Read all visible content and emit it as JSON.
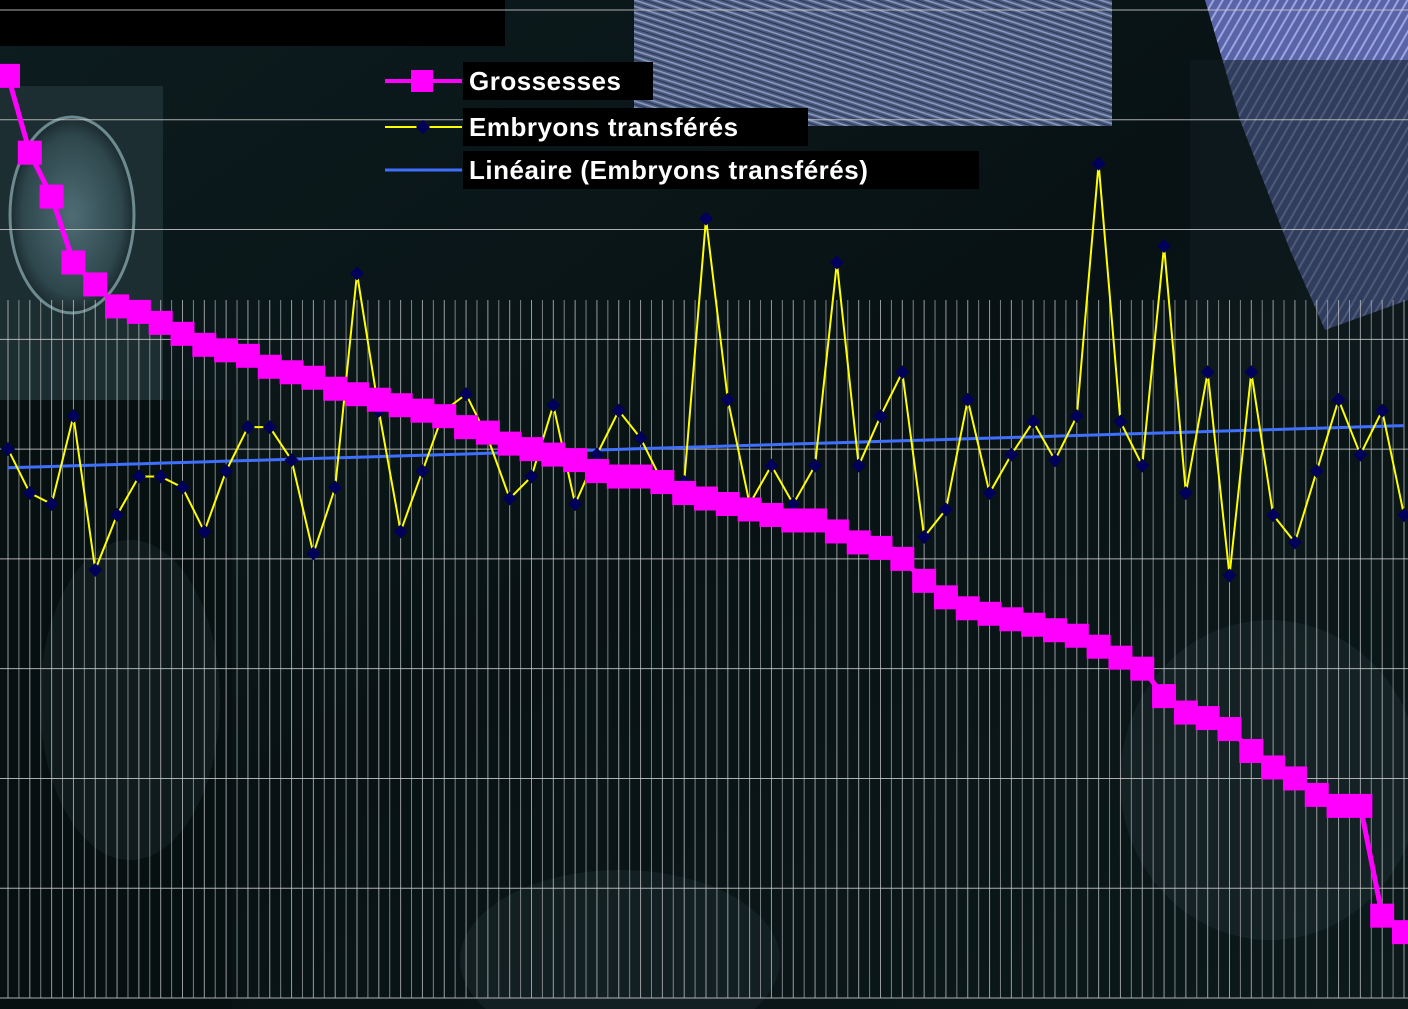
{
  "chart_data": {
    "type": "line",
    "title": "",
    "xlabel": "",
    "ylabel": "",
    "x": [
      1,
      2,
      3,
      4,
      5,
      6,
      7,
      8,
      9,
      10,
      11,
      12,
      13,
      14,
      15,
      16,
      17,
      18,
      19,
      20,
      21,
      22,
      23,
      24,
      25,
      26,
      27,
      28,
      29,
      30,
      31,
      32,
      33,
      34,
      35,
      36,
      37,
      38,
      39,
      40,
      41,
      42,
      43,
      44,
      45,
      46,
      47,
      48,
      49,
      50,
      51,
      52,
      53,
      54,
      55,
      56,
      57,
      58,
      59,
      60,
      61,
      62,
      63,
      64,
      65
    ],
    "ylim": [
      0,
      9
    ],
    "grid": true,
    "legend_position": "top-center",
    "series": [
      {
        "name": "Grossesses",
        "color": "#ff00ff",
        "marker": "square",
        "values": [
          8.4,
          7.7,
          7.3,
          6.7,
          6.5,
          6.3,
          6.25,
          6.15,
          6.05,
          5.95,
          5.9,
          5.85,
          5.75,
          5.7,
          5.65,
          5.55,
          5.5,
          5.45,
          5.4,
          5.35,
          5.3,
          5.2,
          5.15,
          5.05,
          5.0,
          4.95,
          4.9,
          4.8,
          4.75,
          4.75,
          4.7,
          4.6,
          4.55,
          4.5,
          4.45,
          4.4,
          4.35,
          4.35,
          4.25,
          4.15,
          4.1,
          4.0,
          3.8,
          3.65,
          3.55,
          3.5,
          3.45,
          3.4,
          3.35,
          3.3,
          3.2,
          3.1,
          3.0,
          2.75,
          2.6,
          2.55,
          2.45,
          2.25,
          2.1,
          2.0,
          1.85,
          1.75,
          1.75,
          0.75,
          0.6
        ]
      },
      {
        "name": "Embryons transférés",
        "color": "#ffff00",
        "marker": "diamond",
        "values": [
          5.0,
          4.6,
          4.5,
          5.3,
          3.9,
          4.4,
          4.75,
          4.75,
          4.65,
          4.25,
          4.8,
          5.2,
          5.2,
          4.9,
          4.05,
          4.65,
          6.6,
          5.35,
          4.25,
          4.8,
          5.35,
          5.5,
          5.1,
          4.55,
          4.75,
          5.4,
          4.5,
          4.95,
          5.35,
          5.1,
          4.7,
          4.7,
          7.1,
          5.45,
          4.5,
          4.85,
          4.5,
          4.85,
          6.7,
          4.85,
          5.3,
          5.7,
          4.2,
          4.45,
          5.45,
          4.6,
          4.95,
          5.25,
          4.9,
          5.3,
          7.6,
          5.25,
          4.85,
          6.85,
          4.6,
          5.7,
          3.85,
          5.7,
          4.4,
          4.15,
          4.8,
          5.45,
          4.95,
          5.35,
          4.4
        ]
      },
      {
        "name": "Linéaire (Embryons transférés)",
        "color": "#3f6fff",
        "marker": "none",
        "values": [
          4.83,
          4.836,
          4.842,
          4.848,
          4.854,
          4.86,
          4.866,
          4.872,
          4.878,
          4.884,
          4.89,
          4.896,
          4.902,
          4.908,
          4.914,
          4.92,
          4.926,
          4.932,
          4.938,
          4.944,
          4.95,
          4.956,
          4.962,
          4.968,
          4.974,
          4.98,
          4.986,
          4.992,
          4.998,
          5.004,
          5.01,
          5.016,
          5.022,
          5.028,
          5.034,
          5.04,
          5.046,
          5.052,
          5.058,
          5.064,
          5.07,
          5.076,
          5.082,
          5.088,
          5.094,
          5.1,
          5.106,
          5.112,
          5.118,
          5.124,
          5.13,
          5.136,
          5.142,
          5.148,
          5.154,
          5.16,
          5.166,
          5.172,
          5.178,
          5.184,
          5.19,
          5.196,
          5.202,
          5.208,
          5.214
        ]
      }
    ]
  }
}
